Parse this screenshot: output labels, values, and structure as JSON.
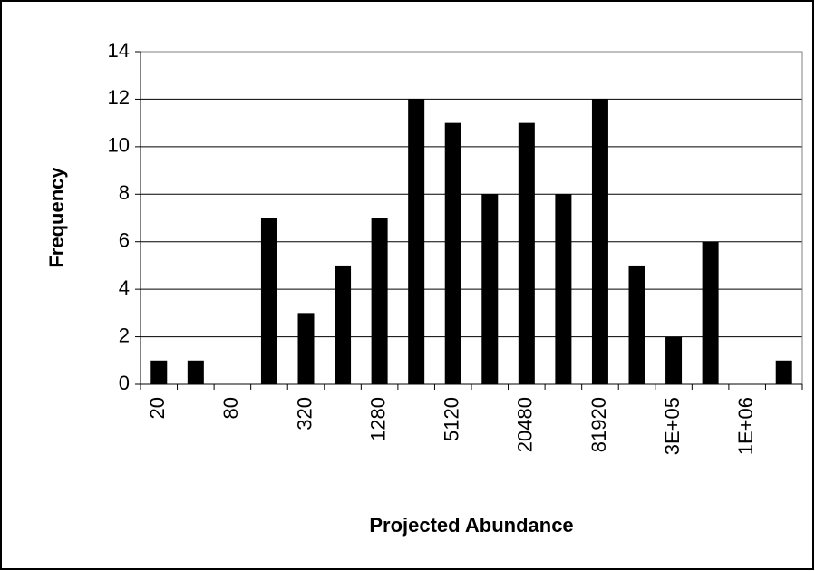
{
  "chart_data": {
    "type": "bar",
    "x_label": "Projected Abundance",
    "y_label": "Frequency",
    "categories": [
      "20",
      null,
      "80",
      null,
      "320",
      null,
      "1280",
      null,
      "5120",
      null,
      "20480",
      null,
      "81920",
      null,
      "3E+05",
      null,
      "1E+06",
      null
    ],
    "values": [
      1,
      1,
      0,
      7,
      3,
      5,
      7,
      12,
      11,
      8,
      11,
      8,
      12,
      5,
      2,
      6,
      0,
      1
    ],
    "color": "#000000",
    "ylim": [
      0,
      14
    ],
    "yticks": [
      0,
      2,
      4,
      6,
      8,
      10,
      12,
      14
    ],
    "grid": true
  }
}
